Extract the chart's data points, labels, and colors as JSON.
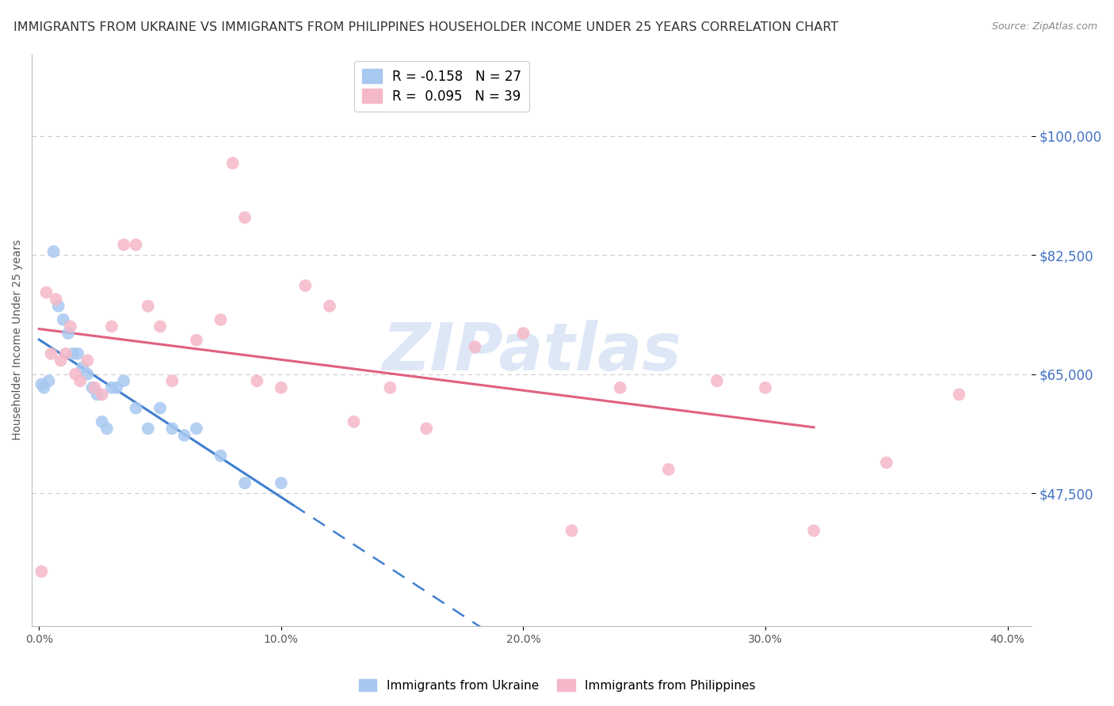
{
  "title": "IMMIGRANTS FROM UKRAINE VS IMMIGRANTS FROM PHILIPPINES HOUSEHOLDER INCOME UNDER 25 YEARS CORRELATION CHART",
  "source": "Source: ZipAtlas.com",
  "ylabel": "Householder Income Under 25 years",
  "xlabel_ticks": [
    "0.0%",
    "10.0%",
    "20.0%",
    "30.0%",
    "40.0%"
  ],
  "xlabel_vals": [
    0.0,
    10.0,
    20.0,
    30.0,
    40.0
  ],
  "ytick_vals": [
    47500,
    65000,
    82500,
    100000
  ],
  "ytick_labels": [
    "$47,500",
    "$65,000",
    "$82,500",
    "$100,000"
  ],
  "ymin": 28000,
  "ymax": 112000,
  "xmin": -0.3,
  "xmax": 41.0,
  "ukraine_color": "#a8c8f0",
  "philippines_color": "#f5b8c8",
  "ukraine_line_color": "#4080d0",
  "philippines_line_color": "#e06080",
  "ukraine_solid_xmax": 10.5,
  "philippines_solid_xmax": 32.0,
  "trend_xmax": 40.5,
  "legend_ukraine_label": "R = -0.158   N = 27",
  "legend_philippines_label": "R =  0.095   N = 39",
  "watermark": "ZIPatlas",
  "ukraine_x": [
    0.1,
    0.2,
    0.4,
    0.6,
    0.8,
    1.0,
    1.2,
    1.4,
    1.6,
    1.8,
    2.0,
    2.2,
    2.4,
    2.6,
    2.8,
    3.0,
    3.2,
    3.5,
    4.0,
    4.5,
    5.0,
    5.5,
    6.0,
    6.5,
    7.5,
    8.5,
    10.0
  ],
  "ukraine_y": [
    63500,
    63000,
    64000,
    83000,
    75000,
    73000,
    71000,
    68000,
    68000,
    66000,
    65000,
    63000,
    62000,
    58000,
    57000,
    63000,
    63000,
    64000,
    60000,
    57000,
    60000,
    57000,
    56000,
    57000,
    53000,
    49000,
    49000
  ],
  "philippines_x": [
    0.1,
    0.3,
    0.5,
    0.7,
    0.9,
    1.1,
    1.3,
    1.5,
    1.7,
    2.0,
    2.3,
    2.6,
    3.0,
    3.5,
    4.0,
    4.5,
    5.0,
    5.5,
    6.5,
    7.5,
    8.0,
    8.5,
    9.0,
    10.0,
    11.0,
    12.0,
    13.0,
    14.5,
    16.0,
    18.0,
    20.0,
    22.0,
    24.0,
    26.0,
    28.0,
    30.0,
    32.0,
    35.0,
    38.0
  ],
  "philippines_y": [
    36000,
    77000,
    68000,
    76000,
    67000,
    68000,
    72000,
    65000,
    64000,
    67000,
    63000,
    62000,
    72000,
    84000,
    84000,
    75000,
    72000,
    64000,
    70000,
    73000,
    96000,
    88000,
    64000,
    63000,
    78000,
    75000,
    58000,
    63000,
    57000,
    69000,
    71000,
    42000,
    63000,
    51000,
    64000,
    63000,
    42000,
    52000,
    62000
  ],
  "background_color": "#ffffff",
  "grid_color": "#cccccc",
  "title_color": "#333333",
  "ytick_color": "#4472c4",
  "title_fontsize": 11.5,
  "ylabel_fontsize": 10,
  "source_fontsize": 9,
  "watermark_color": "#c8d8f0",
  "watermark_fontsize": 60,
  "marker_size": 130
}
